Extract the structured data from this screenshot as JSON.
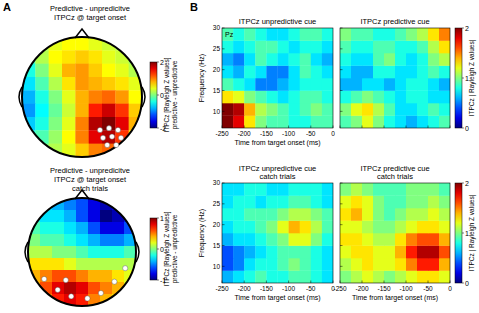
{
  "chart_data": [
    {
      "type": "topomap",
      "panel_label": "A",
      "title": [
        "Predictive - unpredicitve",
        "ITPCz @ target onset"
      ],
      "colorbar_label": [
        "ITPCz [Rayleigh Z values]",
        "predictive - unpredictive"
      ],
      "color_range": [
        -2,
        2
      ],
      "color_ticks": [
        -2,
        0,
        2
      ],
      "cells": [
        [
          0,
          0.2,
          0.4,
          0.5,
          0.5,
          0.4,
          0.3,
          0.2,
          0
        ],
        [
          -0.2,
          0.2,
          0.5,
          0.6,
          0.7,
          0.6,
          0.4,
          0.3,
          0.1
        ],
        [
          -0.4,
          0,
          0.4,
          0.8,
          0.9,
          0.7,
          0.5,
          0.4,
          0.2
        ],
        [
          -0.6,
          -0.2,
          0.2,
          0.6,
          0.9,
          0.8,
          0.7,
          0.6,
          0.4
        ],
        [
          -0.8,
          -0.4,
          0,
          0.4,
          0.8,
          1.0,
          1.1,
          0.9,
          0.5
        ],
        [
          -0.9,
          -0.5,
          -0.1,
          0.3,
          0.8,
          1.4,
          1.7,
          1.3,
          0.7
        ],
        [
          -0.7,
          -0.4,
          0,
          0.4,
          1.0,
          1.8,
          2.0,
          1.6,
          0.8
        ],
        [
          -0.4,
          -0.2,
          0.1,
          0.5,
          1.0,
          1.6,
          1.8,
          1.3,
          0.6
        ],
        [
          -0.2,
          0,
          0.2,
          0.4,
          0.7,
          1.0,
          1.1,
          0.8,
          0.4
        ]
      ],
      "significant_electrodes": {
        "x": [
          0.3,
          0.45,
          0.6,
          0.35,
          0.5,
          0.65,
          0.42,
          0.57
        ],
        "y": [
          0.55,
          0.52,
          0.55,
          0.68,
          0.66,
          0.68,
          0.8,
          0.8
        ]
      }
    },
    {
      "type": "topomap",
      "title": [
        "Predictive - unpredicitve",
        "ITPCz @ target onset",
        "catch trials"
      ],
      "colorbar_label": [
        "ITPCz [Rayleigh Z values]",
        "predictive - unpredictive"
      ],
      "color_range": [
        -1,
        1
      ],
      "color_ticks": [
        -1,
        0,
        1
      ],
      "cells": [
        [
          -0.3,
          -0.3,
          -0.4,
          -0.5,
          -0.6,
          -0.8,
          -0.9,
          -0.8,
          -0.6
        ],
        [
          -0.2,
          -0.3,
          -0.3,
          -0.4,
          -0.6,
          -0.8,
          -1.0,
          -0.9,
          -0.7
        ],
        [
          -0.1,
          -0.2,
          -0.2,
          -0.3,
          -0.4,
          -0.6,
          -0.8,
          -0.8,
          -0.6
        ],
        [
          0,
          -0.1,
          -0.1,
          -0.2,
          -0.3,
          -0.4,
          -0.5,
          -0.5,
          -0.4
        ],
        [
          0.1,
          0.1,
          0,
          0,
          -0.1,
          -0.2,
          -0.2,
          -0.2,
          -0.1
        ],
        [
          0.3,
          0.3,
          0.3,
          0.2,
          0.1,
          0.1,
          0.1,
          0.1,
          0.1
        ],
        [
          0.4,
          0.5,
          0.6,
          0.6,
          0.5,
          0.4,
          0.4,
          0.3,
          0.2
        ],
        [
          0.4,
          0.6,
          0.8,
          0.9,
          0.8,
          0.6,
          0.5,
          0.4,
          0.2
        ],
        [
          0.3,
          0.5,
          0.7,
          0.8,
          0.7,
          0.5,
          0.4,
          0.3,
          0.2
        ]
      ],
      "significant_electrodes": {
        "x": [
          -0.7,
          -0.45,
          -0.2,
          0.1,
          0.35,
          0.6,
          -0.3,
          0.8
        ],
        "y": [
          0.5,
          0.7,
          0.82,
          0.86,
          0.76,
          0.55,
          0.52,
          0.3
        ]
      }
    },
    {
      "type": "heatmap",
      "panel_label": "B",
      "title": [
        "ITPCz unpredictive cue"
      ],
      "annotation": "Pz",
      "x_label": "Time from target onset (ms)",
      "y_label": "Frequency (Hz)",
      "tick_labels": true,
      "xlim": [
        -250,
        0
      ],
      "xticks": [
        -250,
        -200,
        -150,
        -100,
        -50,
        0
      ],
      "ylim": [
        6,
        30
      ],
      "yticks": [
        10,
        15,
        20,
        25,
        30
      ],
      "x_bins": [
        -250,
        -225,
        -200,
        -175,
        -150,
        -125,
        -100,
        -75,
        -50,
        -25,
        0
      ],
      "y_bins": [
        6,
        9,
        12,
        15,
        18,
        21,
        24,
        27,
        30
      ],
      "color_range": [
        0,
        2
      ],
      "cells": [
        [
          2.0,
          1.8,
          1.3,
          1.0,
          0.9,
          0.9,
          0.8,
          0.8,
          0.9,
          0.9
        ],
        [
          2.1,
          1.9,
          1.4,
          1.1,
          1.0,
          0.9,
          0.8,
          0.9,
          1.0,
          0.9
        ],
        [
          1.3,
          1.2,
          1.0,
          0.9,
          0.8,
          0.7,
          0.8,
          0.9,
          0.9,
          0.8
        ],
        [
          0.9,
          0.8,
          0.7,
          0.5,
          0.5,
          0.6,
          0.7,
          0.8,
          0.8,
          0.8
        ],
        [
          0.7,
          0.6,
          0.8,
          0.7,
          0.5,
          0.5,
          0.7,
          0.9,
          0.8,
          0.7
        ],
        [
          0.6,
          0.5,
          0.7,
          0.9,
          0.8,
          0.7,
          0.8,
          0.9,
          0.7,
          0.6
        ],
        [
          0.8,
          0.7,
          0.8,
          0.9,
          0.9,
          0.8,
          0.7,
          0.8,
          0.8,
          0.7
        ],
        [
          0.9,
          0.8,
          0.9,
          0.8,
          0.7,
          0.7,
          0.8,
          0.9,
          0.9,
          0.8
        ]
      ]
    },
    {
      "type": "heatmap",
      "title": [
        "ITPCz predictive cue"
      ],
      "tick_labels": false,
      "xlim": [
        -250,
        0
      ],
      "xticks": [
        -250,
        -200,
        -150,
        -100,
        -50,
        0
      ],
      "ylim": [
        6,
        30
      ],
      "yticks": [
        10,
        15,
        20,
        25,
        30
      ],
      "x_bins": [
        -250,
        -225,
        -200,
        -175,
        -150,
        -125,
        -100,
        -75,
        -50,
        -25,
        0
      ],
      "y_bins": [
        6,
        9,
        12,
        15,
        18,
        21,
        24,
        27,
        30
      ],
      "color_range": [
        0,
        2
      ],
      "color_ticks": [
        0,
        1,
        2
      ],
      "colorbar_label": "ITPCz | Rayleigh Z values|",
      "cells": [
        [
          0.9,
          1.0,
          1.2,
          1.0,
          0.8,
          0.7,
          0.6,
          0.7,
          0.8,
          0.9
        ],
        [
          1.0,
          1.2,
          1.3,
          1.1,
          0.9,
          0.7,
          0.7,
          0.8,
          0.9,
          0.8
        ],
        [
          0.8,
          0.9,
          1.0,
          0.9,
          0.8,
          0.7,
          0.8,
          0.8,
          0.7,
          0.7
        ],
        [
          0.6,
          0.6,
          0.7,
          0.7,
          0.6,
          0.7,
          0.8,
          0.8,
          0.7,
          0.6
        ],
        [
          0.7,
          0.6,
          0.6,
          0.8,
          0.8,
          0.7,
          0.7,
          0.8,
          0.9,
          0.8
        ],
        [
          0.8,
          0.7,
          0.7,
          0.9,
          1.0,
          0.8,
          0.7,
          0.8,
          1.0,
          1.1
        ],
        [
          0.9,
          0.8,
          0.8,
          0.9,
          0.9,
          0.8,
          0.8,
          0.9,
          1.1,
          1.3
        ],
        [
          1.0,
          0.9,
          0.9,
          0.8,
          0.8,
          0.9,
          1.0,
          1.1,
          1.3,
          1.5
        ]
      ]
    },
    {
      "type": "heatmap",
      "title": [
        "ITPCz unpredictive cue",
        "catch trials"
      ],
      "x_label": "Time from target onset (ms)",
      "y_label": "Frequency (Hz)",
      "tick_labels": true,
      "xlim": [
        -250,
        0
      ],
      "xticks": [
        -250,
        -200,
        -150,
        -100,
        -50,
        0
      ],
      "ylim": [
        6,
        30
      ],
      "yticks": [
        10,
        15,
        20,
        25,
        30
      ],
      "x_bins": [
        -250,
        -225,
        -200,
        -175,
        -150,
        -125,
        -100,
        -75,
        -50,
        -25,
        0
      ],
      "y_bins": [
        6,
        9,
        12,
        15,
        18,
        21,
        24,
        27,
        30
      ],
      "color_range": [
        0,
        2
      ],
      "cells": [
        [
          0.6,
          0.7,
          0.8,
          0.9,
          0.8,
          0.8,
          0.9,
          0.9,
          0.8,
          0.7
        ],
        [
          0.4,
          0.5,
          0.7,
          0.8,
          0.8,
          0.9,
          1.0,
          0.9,
          0.8,
          0.7
        ],
        [
          0.4,
          0.5,
          0.6,
          0.7,
          0.8,
          0.9,
          0.9,
          0.9,
          0.8,
          0.7
        ],
        [
          0.6,
          0.7,
          0.7,
          0.8,
          0.9,
          1.0,
          1.2,
          1.2,
          1.0,
          0.8
        ],
        [
          0.7,
          0.8,
          0.8,
          0.9,
          1.0,
          1.2,
          1.4,
          1.3,
          1.1,
          0.9
        ],
        [
          0.8,
          0.8,
          0.9,
          0.9,
          0.9,
          1.0,
          1.1,
          1.1,
          1.0,
          0.9
        ],
        [
          0.7,
          0.8,
          0.8,
          0.7,
          0.8,
          0.8,
          0.9,
          0.9,
          0.8,
          0.7
        ],
        [
          0.7,
          0.7,
          0.8,
          0.8,
          0.7,
          0.7,
          0.8,
          0.8,
          0.8,
          0.7
        ]
      ]
    },
    {
      "type": "heatmap",
      "title": [
        "ITPCz predictive cue",
        "catch trials"
      ],
      "x_label": "Time from target onset (ms)",
      "tick_labels": "x",
      "xlim": [
        -250,
        0
      ],
      "xticks": [
        -250,
        -200,
        -150,
        -100,
        -50,
        0
      ],
      "ylim": [
        6,
        30
      ],
      "yticks": [
        10,
        15,
        20,
        25,
        30
      ],
      "x_bins": [
        -250,
        -225,
        -200,
        -175,
        -150,
        -125,
        -100,
        -75,
        -50,
        -25,
        0
      ],
      "y_bins": [
        6,
        9,
        12,
        15,
        18,
        21,
        24,
        27,
        30
      ],
      "color_range": [
        0,
        2
      ],
      "color_ticks": [
        0,
        1,
        2
      ],
      "colorbar_label": "ITPCz | Rayleigh Z values|",
      "cells": [
        [
          1.0,
          1.1,
          1.2,
          1.1,
          1.0,
          1.1,
          1.2,
          1.3,
          1.3,
          1.2
        ],
        [
          1.1,
          1.2,
          1.3,
          1.2,
          1.2,
          1.3,
          1.5,
          1.7,
          1.7,
          1.4
        ],
        [
          1.2,
          1.3,
          1.3,
          1.2,
          1.2,
          1.4,
          1.7,
          1.9,
          1.9,
          1.6
        ],
        [
          1.3,
          1.3,
          1.2,
          1.1,
          1.1,
          1.3,
          1.5,
          1.6,
          1.6,
          1.4
        ],
        [
          1.2,
          1.2,
          1.1,
          1.0,
          1.0,
          1.1,
          1.2,
          1.3,
          1.3,
          1.2
        ],
        [
          1.3,
          1.4,
          1.2,
          1.0,
          0.9,
          1.0,
          1.1,
          1.1,
          1.2,
          1.1
        ],
        [
          1.2,
          1.3,
          1.2,
          1.0,
          0.9,
          0.9,
          1.0,
          1.0,
          1.1,
          1.0
        ],
        [
          1.0,
          1.1,
          1.0,
          0.9,
          0.9,
          0.9,
          1.0,
          1.0,
          1.0,
          0.9
        ]
      ]
    }
  ]
}
